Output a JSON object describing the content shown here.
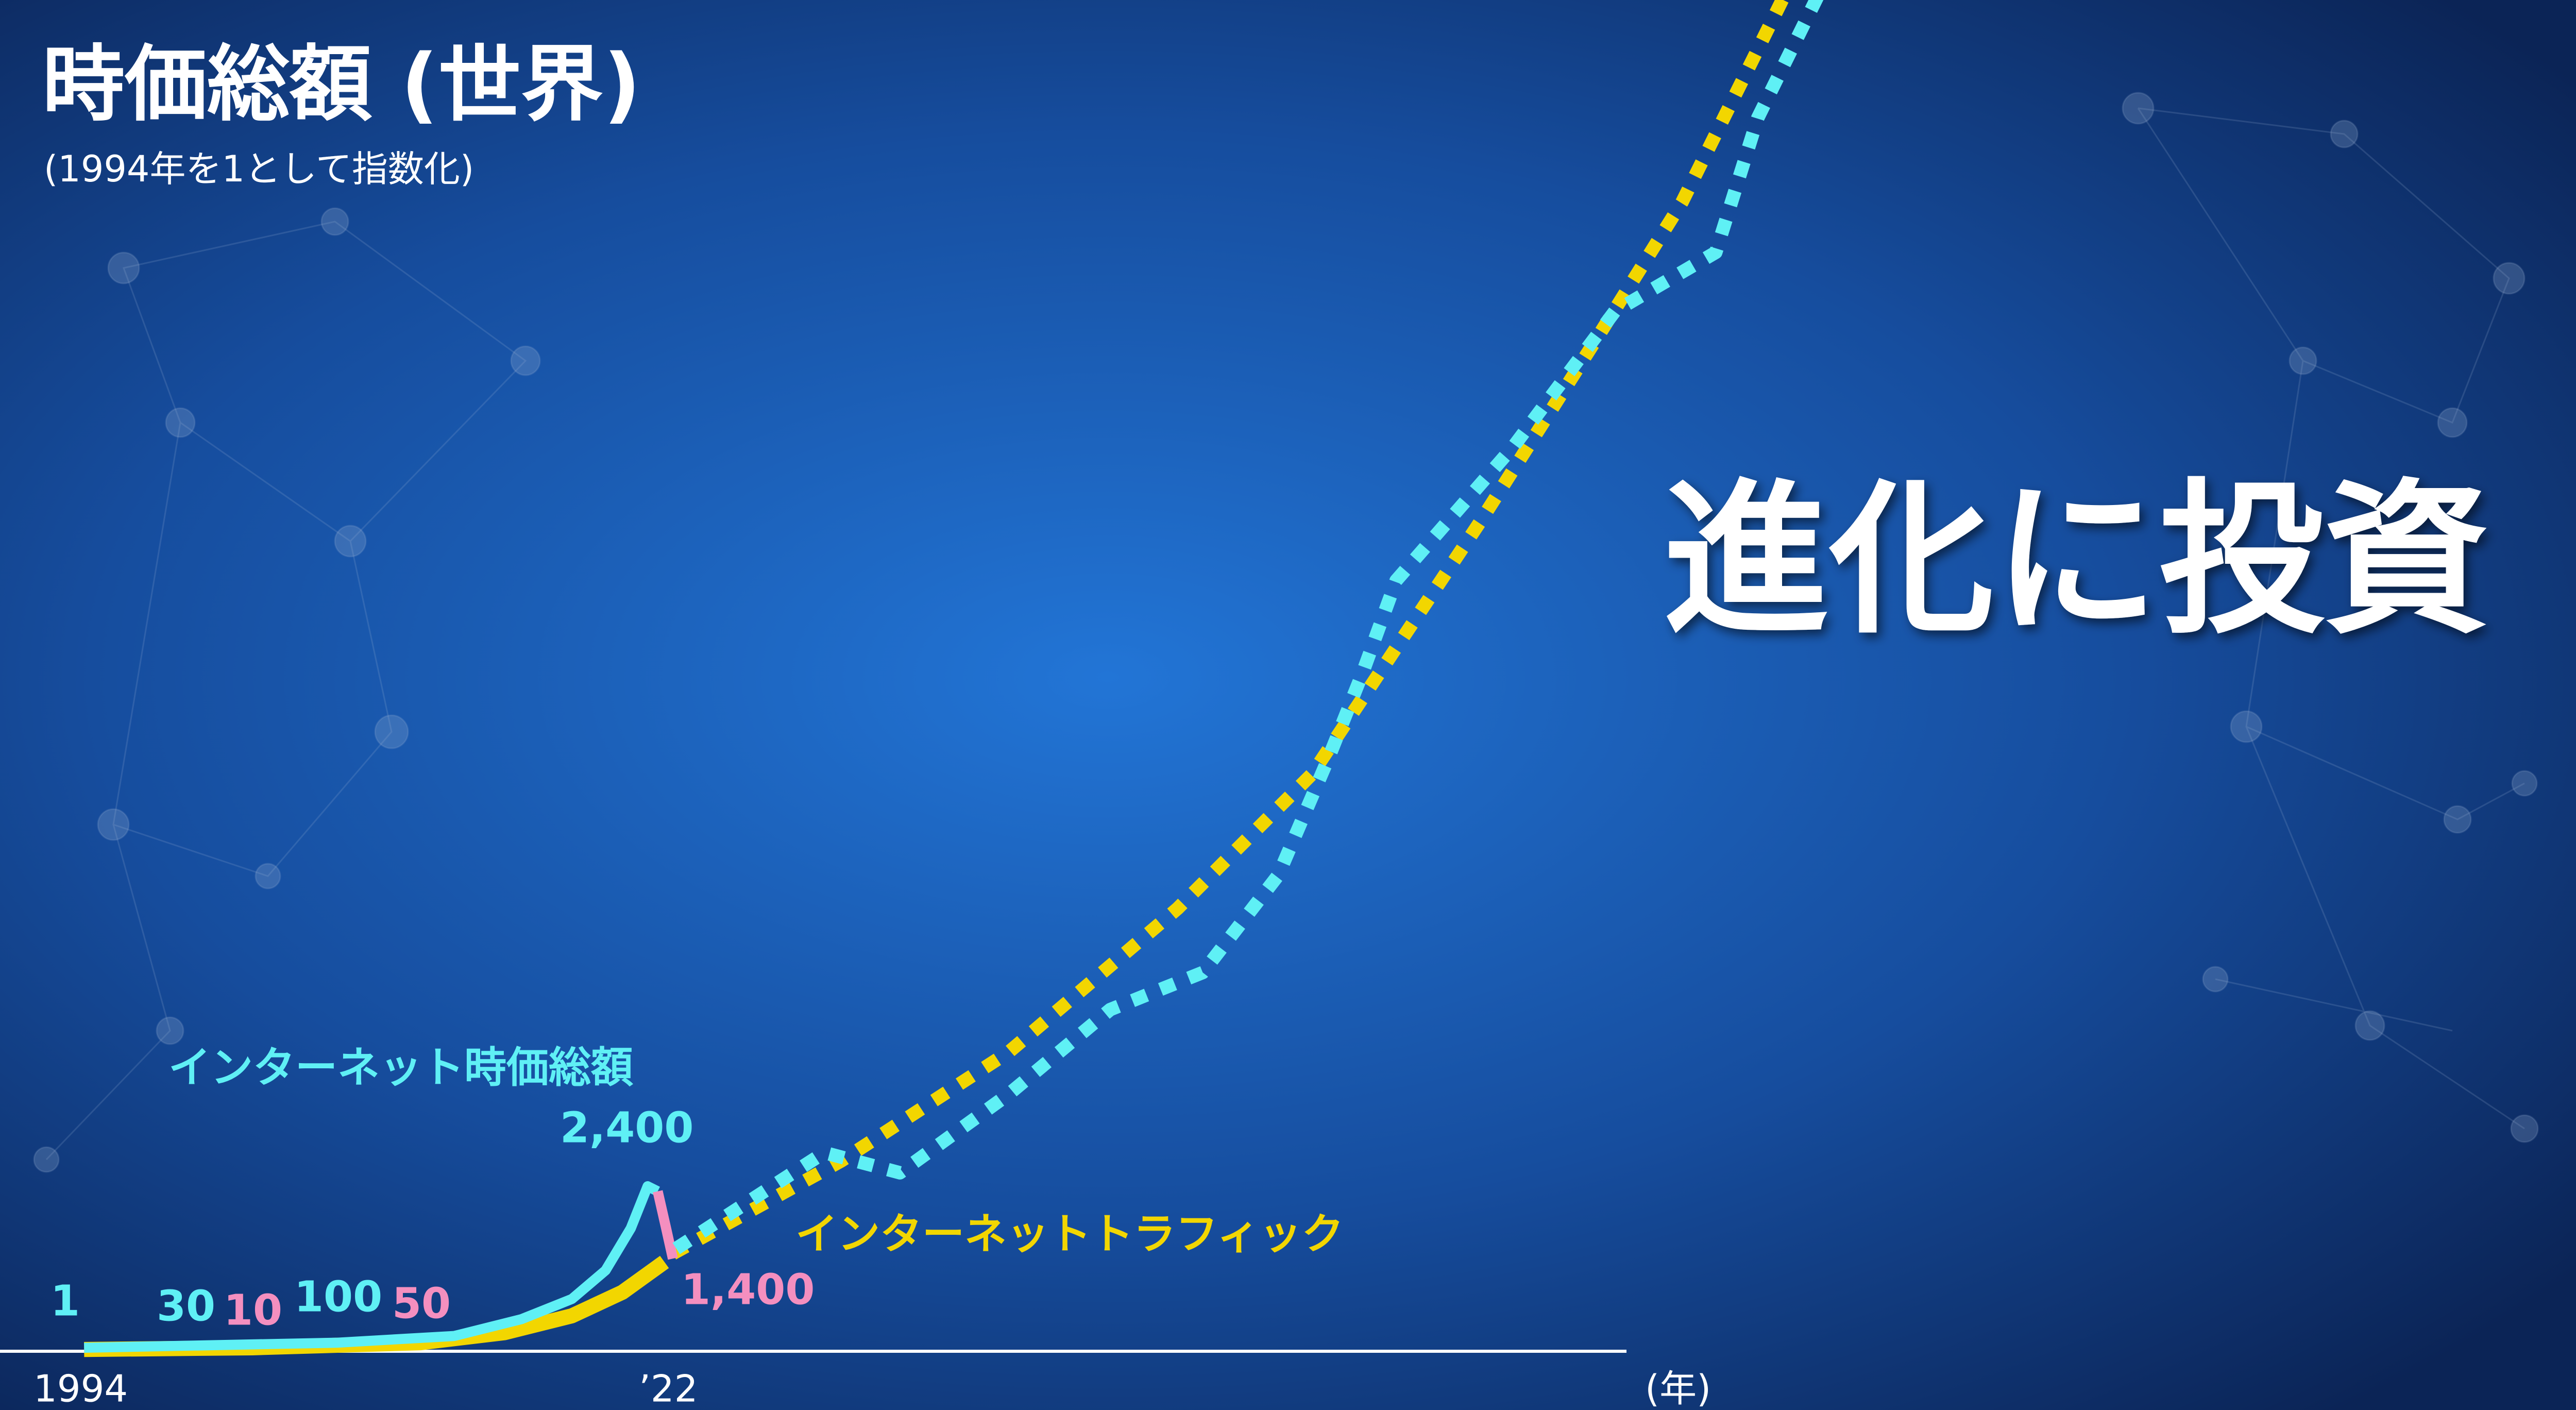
{
  "header": {
    "title": "時価総額 (世界)",
    "subtitle": "(1994年を1として指数化)"
  },
  "headline": "進化に投資",
  "axis": {
    "start": "1994",
    "end": "’22",
    "unit": "(年)"
  },
  "series": [
    {
      "name": "インターネット時価総額",
      "color": "#5ff0f5"
    },
    {
      "name": "インターネットトラフィック",
      "color": "#f2d600"
    }
  ],
  "annotations": [
    {
      "text": "1",
      "color": "#5ff0f5"
    },
    {
      "text": "30",
      "color": "#5ff0f5"
    },
    {
      "text": "10",
      "color": "#f48fbf"
    },
    {
      "text": "100",
      "color": "#5ff0f5"
    },
    {
      "text": "50",
      "color": "#f48fbf"
    },
    {
      "text": "2,400",
      "color": "#5ff0f5"
    },
    {
      "text": "1,400",
      "color": "#f48fbf"
    }
  ]
}
